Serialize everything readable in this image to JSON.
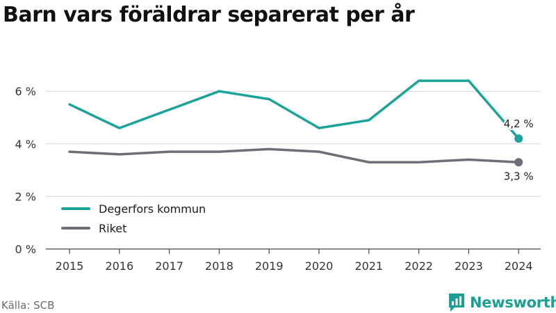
{
  "title": "Barn vars föräldrar separerat per år",
  "source": "Källa: SCB",
  "brand": {
    "name": "Newsworthy",
    "logo_icon": "newsworthy-logo-icon",
    "color": "#1c9e94"
  },
  "chart_data": {
    "type": "line",
    "categories": [
      "2015",
      "2016",
      "2017",
      "2018",
      "2019",
      "2020",
      "2021",
      "2022",
      "2023",
      "2024"
    ],
    "series": [
      {
        "name": "Degerfors kommun",
        "color": "#1ba39a",
        "values": [
          5.5,
          4.6,
          5.3,
          6.0,
          5.7,
          4.6,
          4.9,
          6.4,
          6.4,
          4.2
        ],
        "end_label": "4,2 %"
      },
      {
        "name": "Riket",
        "color": "#6e6e78",
        "values": [
          3.7,
          3.6,
          3.7,
          3.7,
          3.8,
          3.7,
          3.3,
          3.3,
          3.4,
          3.3
        ],
        "end_label": "3,3 %"
      }
    ],
    "y_ticks": [
      0,
      2,
      4,
      6
    ],
    "y_tick_labels": [
      "0 %",
      "2 %",
      "4 %",
      "6 %"
    ],
    "ylim": [
      0,
      7
    ],
    "grid": true,
    "legend_position": "bottom-left"
  }
}
